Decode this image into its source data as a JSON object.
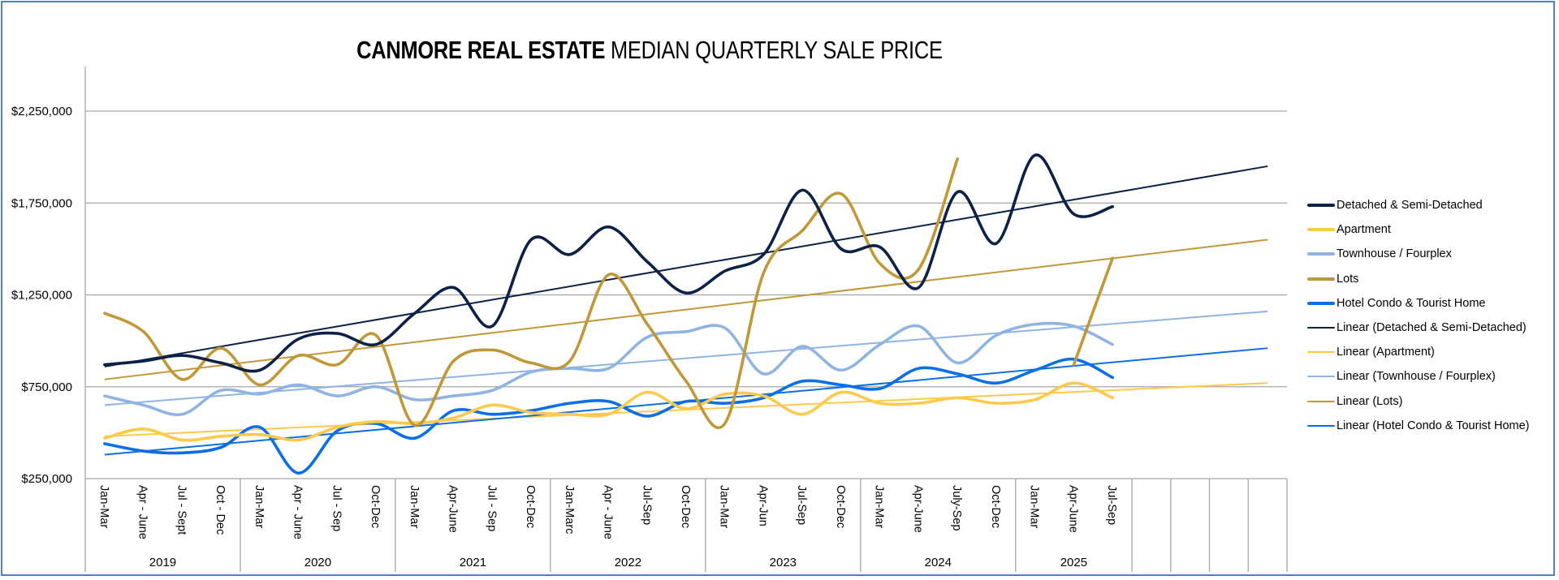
{
  "chart_data": {
    "type": "line",
    "title_bold": "CANMORE REAL ESTATE",
    "title_rest": " MEDIAN QUARTERLY SALE PRICE",
    "title": "CANMORE REAL ESTATE MEDIAN QUARTERLY SALE PRICE",
    "xlabel": "",
    "ylabel": "",
    "ylim": [
      250000,
      2250000
    ],
    "yticks": [
      250000,
      750000,
      1250000,
      1750000,
      2250000
    ],
    "ytick_labels": [
      "$250,000",
      "$750,000",
      "$1,250,000",
      "$1,750,000",
      "$2,250,000"
    ],
    "grid": true,
    "legend_position": "right",
    "categories": [
      "Jan-Mar",
      "Apr - June",
      "Jul - Sept",
      "Oct - Dec",
      "Jan-Mar",
      "Apr - June",
      "Jul - Sep",
      "Oct-Dec",
      "Jan-Mar",
      "Apr-June",
      "Jul - Sep",
      "Oct-Dec",
      "Jan-Marc",
      "Apr - June",
      "Jul-Sep",
      "Oct-Dec",
      "Jan-Mar",
      "Apr-Jun",
      "Jul-Sep",
      "Oct-Dec",
      "Jan-Mar",
      "Apr-June",
      "July-Sep",
      "Oct-Dec",
      "Jan-Mar",
      "Apr-June",
      "Jul-Sep",
      "",
      "",
      "",
      ""
    ],
    "year_groups": [
      {
        "label": "2019",
        "count": 4
      },
      {
        "label": "2020",
        "count": 4
      },
      {
        "label": "2021",
        "count": 4
      },
      {
        "label": "2022",
        "count": 4
      },
      {
        "label": "2023",
        "count": 4
      },
      {
        "label": "2024",
        "count": 4
      },
      {
        "label": "2025",
        "count": 3
      },
      {
        "label": "",
        "count": 1
      },
      {
        "label": "",
        "count": 1
      },
      {
        "label": "",
        "count": 1
      },
      {
        "label": "",
        "count": 1
      }
    ],
    "series": [
      {
        "name": "Detached & Semi-Detached",
        "color": "#0c2146",
        "values": [
          870000,
          890000,
          920000,
          880000,
          840000,
          1010000,
          1040000,
          980000,
          1150000,
          1290000,
          1080000,
          1550000,
          1470000,
          1620000,
          1430000,
          1260000,
          1380000,
          1470000,
          1820000,
          1500000,
          1510000,
          1290000,
          1810000,
          1530000,
          2010000,
          1690000,
          1730000
        ]
      },
      {
        "name": "Apartment",
        "color": "#ffc94d",
        "values": [
          470000,
          520000,
          460000,
          480000,
          490000,
          460000,
          530000,
          560000,
          550000,
          580000,
          650000,
          610000,
          600000,
          600000,
          720000,
          630000,
          710000,
          700000,
          600000,
          720000,
          660000,
          660000,
          690000,
          660000,
          680000,
          770000,
          690000
        ]
      },
      {
        "name": "Townhouse / Fourplex",
        "color": "#8fb4e3",
        "values": [
          700000,
          650000,
          600000,
          730000,
          710000,
          760000,
          700000,
          750000,
          680000,
          700000,
          730000,
          830000,
          850000,
          850000,
          1020000,
          1050000,
          1070000,
          820000,
          970000,
          840000,
          980000,
          1080000,
          880000,
          1030000,
          1090000,
          1080000,
          980000
        ]
      },
      {
        "name": "Lots",
        "color": "#c09838",
        "values": [
          1150000,
          1050000,
          790000,
          960000,
          760000,
          920000,
          870000,
          1030000,
          540000,
          890000,
          950000,
          880000,
          890000,
          1360000,
          1090000,
          780000,
          550000,
          1370000,
          1600000,
          1800000,
          1420000,
          1390000,
          1990000,
          null,
          null,
          870000,
          1450000
        ]
      },
      {
        "name": "Hotel Condo & Tourist Home",
        "color": "#0a6ee6",
        "values": [
          440000,
          400000,
          390000,
          420000,
          530000,
          280000,
          510000,
          550000,
          470000,
          620000,
          600000,
          620000,
          660000,
          670000,
          590000,
          670000,
          660000,
          690000,
          780000,
          760000,
          740000,
          850000,
          820000,
          770000,
          840000,
          900000,
          800000
        ]
      }
    ],
    "trendlines": [
      {
        "name": "Linear (Detached & Semi-Detached)",
        "color": "#0c2146",
        "start": 860000,
        "end": 1950000
      },
      {
        "name": "Linear (Apartment)",
        "color": "#ffc94d",
        "start": 480000,
        "end": 770000
      },
      {
        "name": "Linear (Townhouse / Fourplex)",
        "color": "#8fb4e3",
        "start": 650000,
        "end": 1160000
      },
      {
        "name": "Linear (Lots)",
        "color": "#c09838",
        "start": 790000,
        "end": 1550000
      },
      {
        "name": "Linear (Hotel Condo & Tourist Home)",
        "color": "#0a6ee6",
        "start": 380000,
        "end": 960000
      }
    ]
  },
  "legend": [
    {
      "label": "Detached & Semi-Detached",
      "color": "#0c2146",
      "kind": "series"
    },
    {
      "label": "Apartment",
      "color": "#ffc94d",
      "kind": "series"
    },
    {
      "label": "Townhouse / Fourplex",
      "color": "#8fb4e3",
      "kind": "series"
    },
    {
      "label": "Lots",
      "color": "#c09838",
      "kind": "series"
    },
    {
      "label": "Hotel Condo & Tourist Home",
      "color": "#0a6ee6",
      "kind": "series"
    },
    {
      "label": "Linear (Detached & Semi-Detached)",
      "color": "#0c2146",
      "kind": "trend"
    },
    {
      "label": "Linear (Apartment)",
      "color": "#ffc94d",
      "kind": "trend"
    },
    {
      "label": "Linear (Townhouse / Fourplex)",
      "color": "#8fb4e3",
      "kind": "trend"
    },
    {
      "label": "Linear (Lots)",
      "color": "#c09838",
      "kind": "trend"
    },
    {
      "label": "Linear (Hotel Condo & Tourist Home)",
      "color": "#0a6ee6",
      "kind": "trend"
    }
  ]
}
